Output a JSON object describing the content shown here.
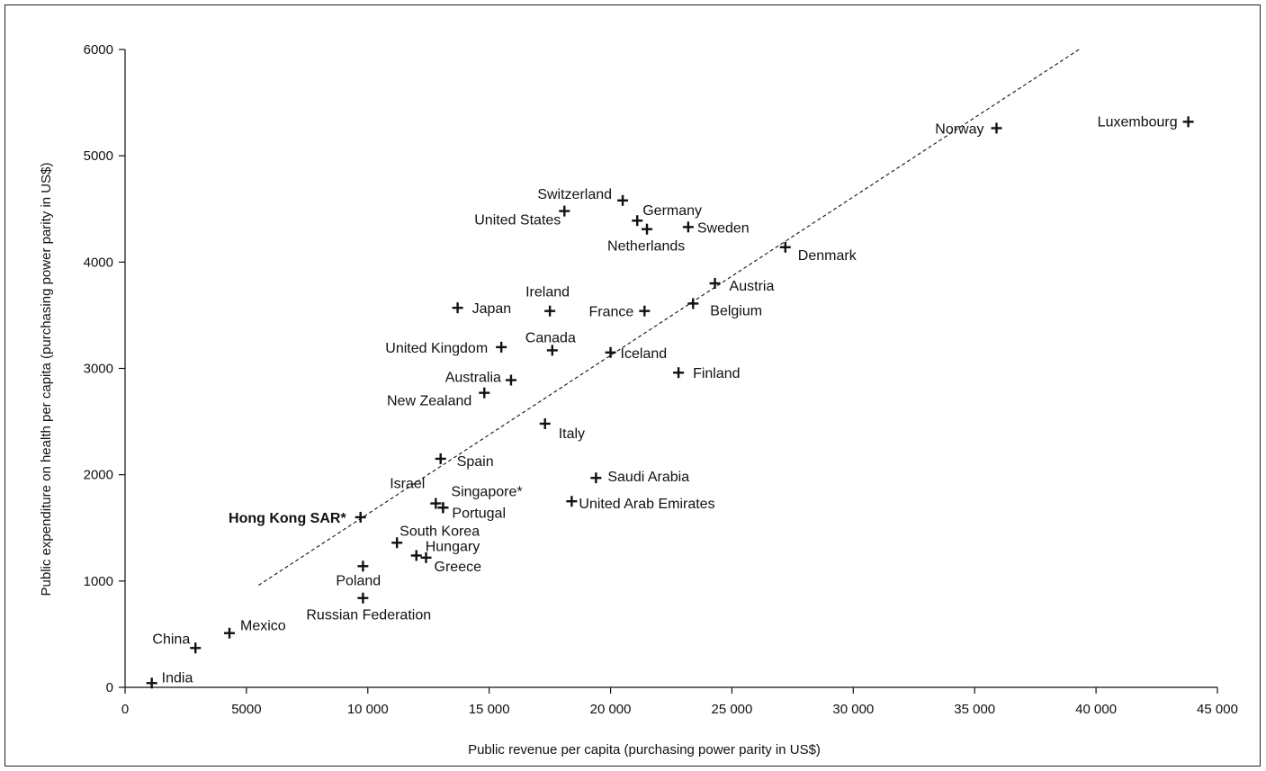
{
  "chart_data": {
    "type": "scatter",
    "title": "",
    "xlabel": "Public revenue per capita (purchasing power parity in US$)",
    "ylabel": "Public expenditure on health per capita (purchasing power parity in US$)",
    "xlim": [
      0,
      45000
    ],
    "ylim": [
      0,
      6000
    ],
    "x_ticks": [
      0,
      5000,
      10000,
      15000,
      20000,
      25000,
      30000,
      35000,
      40000,
      45000
    ],
    "x_tick_labels": [
      "0",
      "5000",
      "10 000",
      "15 000",
      "20 000",
      "25 000",
      "30 000",
      "35 000",
      "40 000",
      "45 000"
    ],
    "y_ticks": [
      0,
      1000,
      2000,
      3000,
      4000,
      5000,
      6000
    ],
    "y_tick_labels": [
      "0",
      "1000",
      "2000",
      "3000",
      "4000",
      "5000",
      "6000"
    ],
    "grid": false,
    "trend_line": {
      "style": "dashed",
      "x": [
        5500,
        39300
      ],
      "y": [
        960,
        6000
      ]
    },
    "points": [
      {
        "label": "Luxembourg",
        "x": 43800,
        "y": 5320
      },
      {
        "label": "Norway",
        "x": 35900,
        "y": 5260
      },
      {
        "label": "Switzerland",
        "x": 20500,
        "y": 4580
      },
      {
        "label": "United States",
        "x": 18100,
        "y": 4480
      },
      {
        "label": "Germany",
        "x": 21100,
        "y": 4390
      },
      {
        "label": "Netherlands",
        "x": 21500,
        "y": 4310
      },
      {
        "label": "Sweden",
        "x": 23200,
        "y": 4330
      },
      {
        "label": "Denmark",
        "x": 27200,
        "y": 4140
      },
      {
        "label": "Austria",
        "x": 24300,
        "y": 3800
      },
      {
        "label": "Belgium",
        "x": 23400,
        "y": 3610
      },
      {
        "label": "Japan",
        "x": 13700,
        "y": 3570
      },
      {
        "label": "Ireland",
        "x": 17500,
        "y": 3540
      },
      {
        "label": "France",
        "x": 21400,
        "y": 3540
      },
      {
        "label": "United Kingdom",
        "x": 15500,
        "y": 3200
      },
      {
        "label": "Canada",
        "x": 17600,
        "y": 3170
      },
      {
        "label": "Iceland",
        "x": 20000,
        "y": 3150
      },
      {
        "label": "Finland",
        "x": 22800,
        "y": 2960
      },
      {
        "label": "Australia",
        "x": 15900,
        "y": 2890
      },
      {
        "label": "New Zealand",
        "x": 14800,
        "y": 2770
      },
      {
        "label": "Italy",
        "x": 17300,
        "y": 2480
      },
      {
        "label": "Spain",
        "x": 13000,
        "y": 2150
      },
      {
        "label": "Saudi Arabia",
        "x": 19400,
        "y": 1970
      },
      {
        "label": "Israel",
        "x": 12800,
        "y": 1730
      },
      {
        "label": "Singapore*",
        "x": 13100,
        "y": 1690
      },
      {
        "label": "Portugal",
        "x": 13100,
        "y": 1690
      },
      {
        "label": "United Arab Emirates",
        "x": 18400,
        "y": 1750
      },
      {
        "label": "Hong Kong SAR*",
        "x": 9700,
        "y": 1600,
        "bold": true
      },
      {
        "label": "South Korea",
        "x": 11200,
        "y": 1360
      },
      {
        "label": "Hungary",
        "x": 12000,
        "y": 1240
      },
      {
        "label": "Greece",
        "x": 12400,
        "y": 1220
      },
      {
        "label": "Poland",
        "x": 9800,
        "y": 1140
      },
      {
        "label": "Russian Federation",
        "x": 9800,
        "y": 840
      },
      {
        "label": "Mexico",
        "x": 4300,
        "y": 510
      },
      {
        "label": "China",
        "x": 2900,
        "y": 370
      },
      {
        "label": "India",
        "x": 1100,
        "y": 40
      }
    ]
  }
}
